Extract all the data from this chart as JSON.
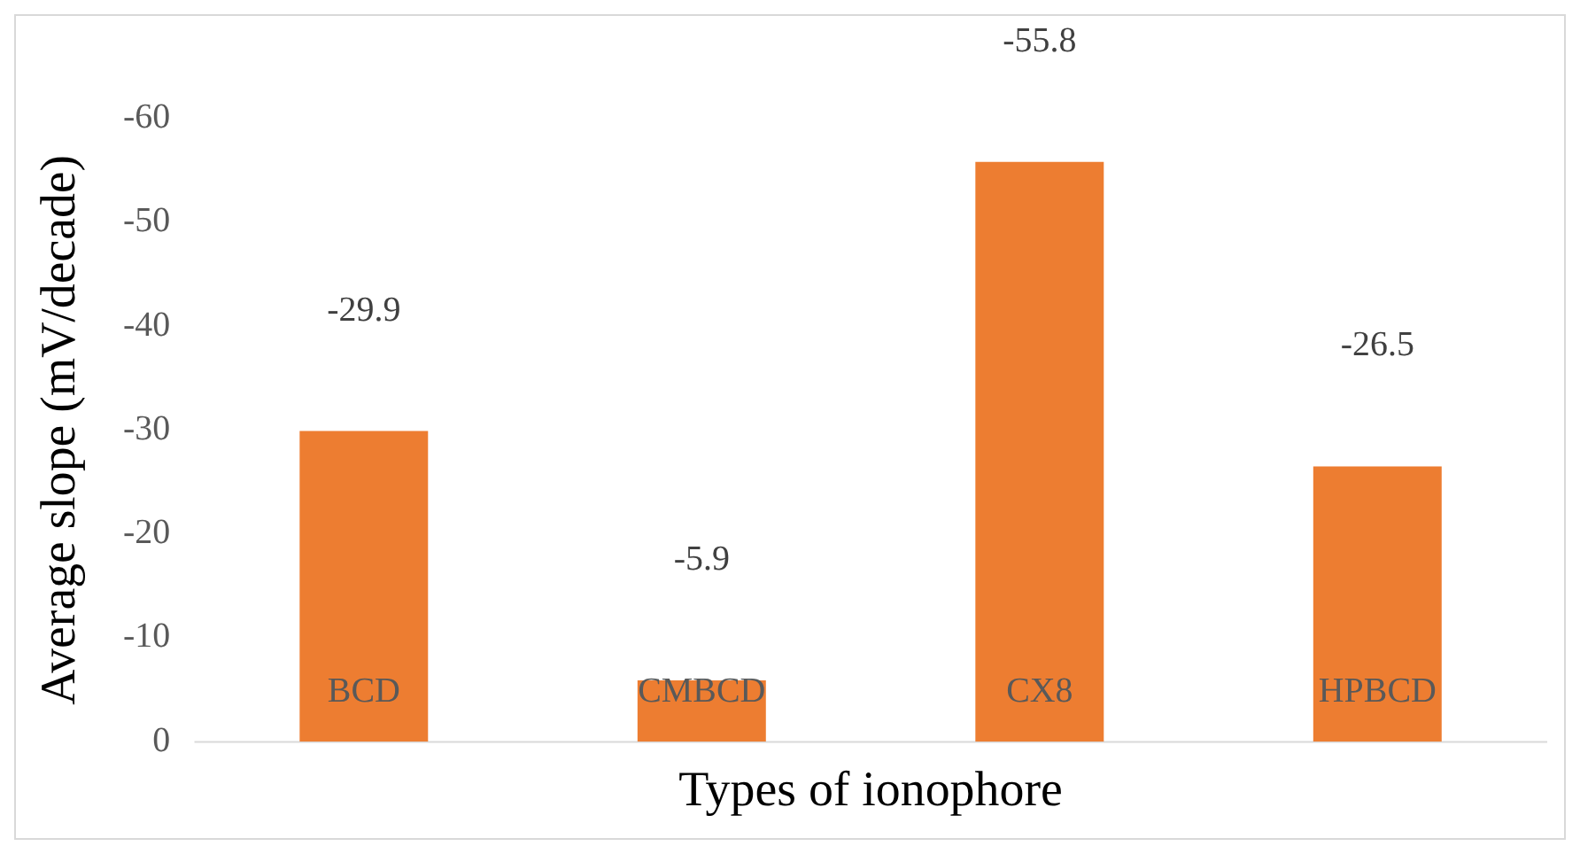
{
  "chart_data": {
    "type": "bar",
    "xlabel": "Types of ionophore",
    "ylabel": "Average slope (mV/decade)",
    "categories": [
      "BCD",
      "CMBCD",
      "CX8",
      "HPBCD"
    ],
    "values": [
      -29.9,
      -5.9,
      -55.8,
      -26.5
    ],
    "color": "#ed7d31",
    "ylim": [
      0,
      -60
    ],
    "yticks": [
      0,
      -10,
      -20,
      -30,
      -40,
      -50,
      -60
    ],
    "data_labels": true,
    "grid": false,
    "legend": false
  }
}
